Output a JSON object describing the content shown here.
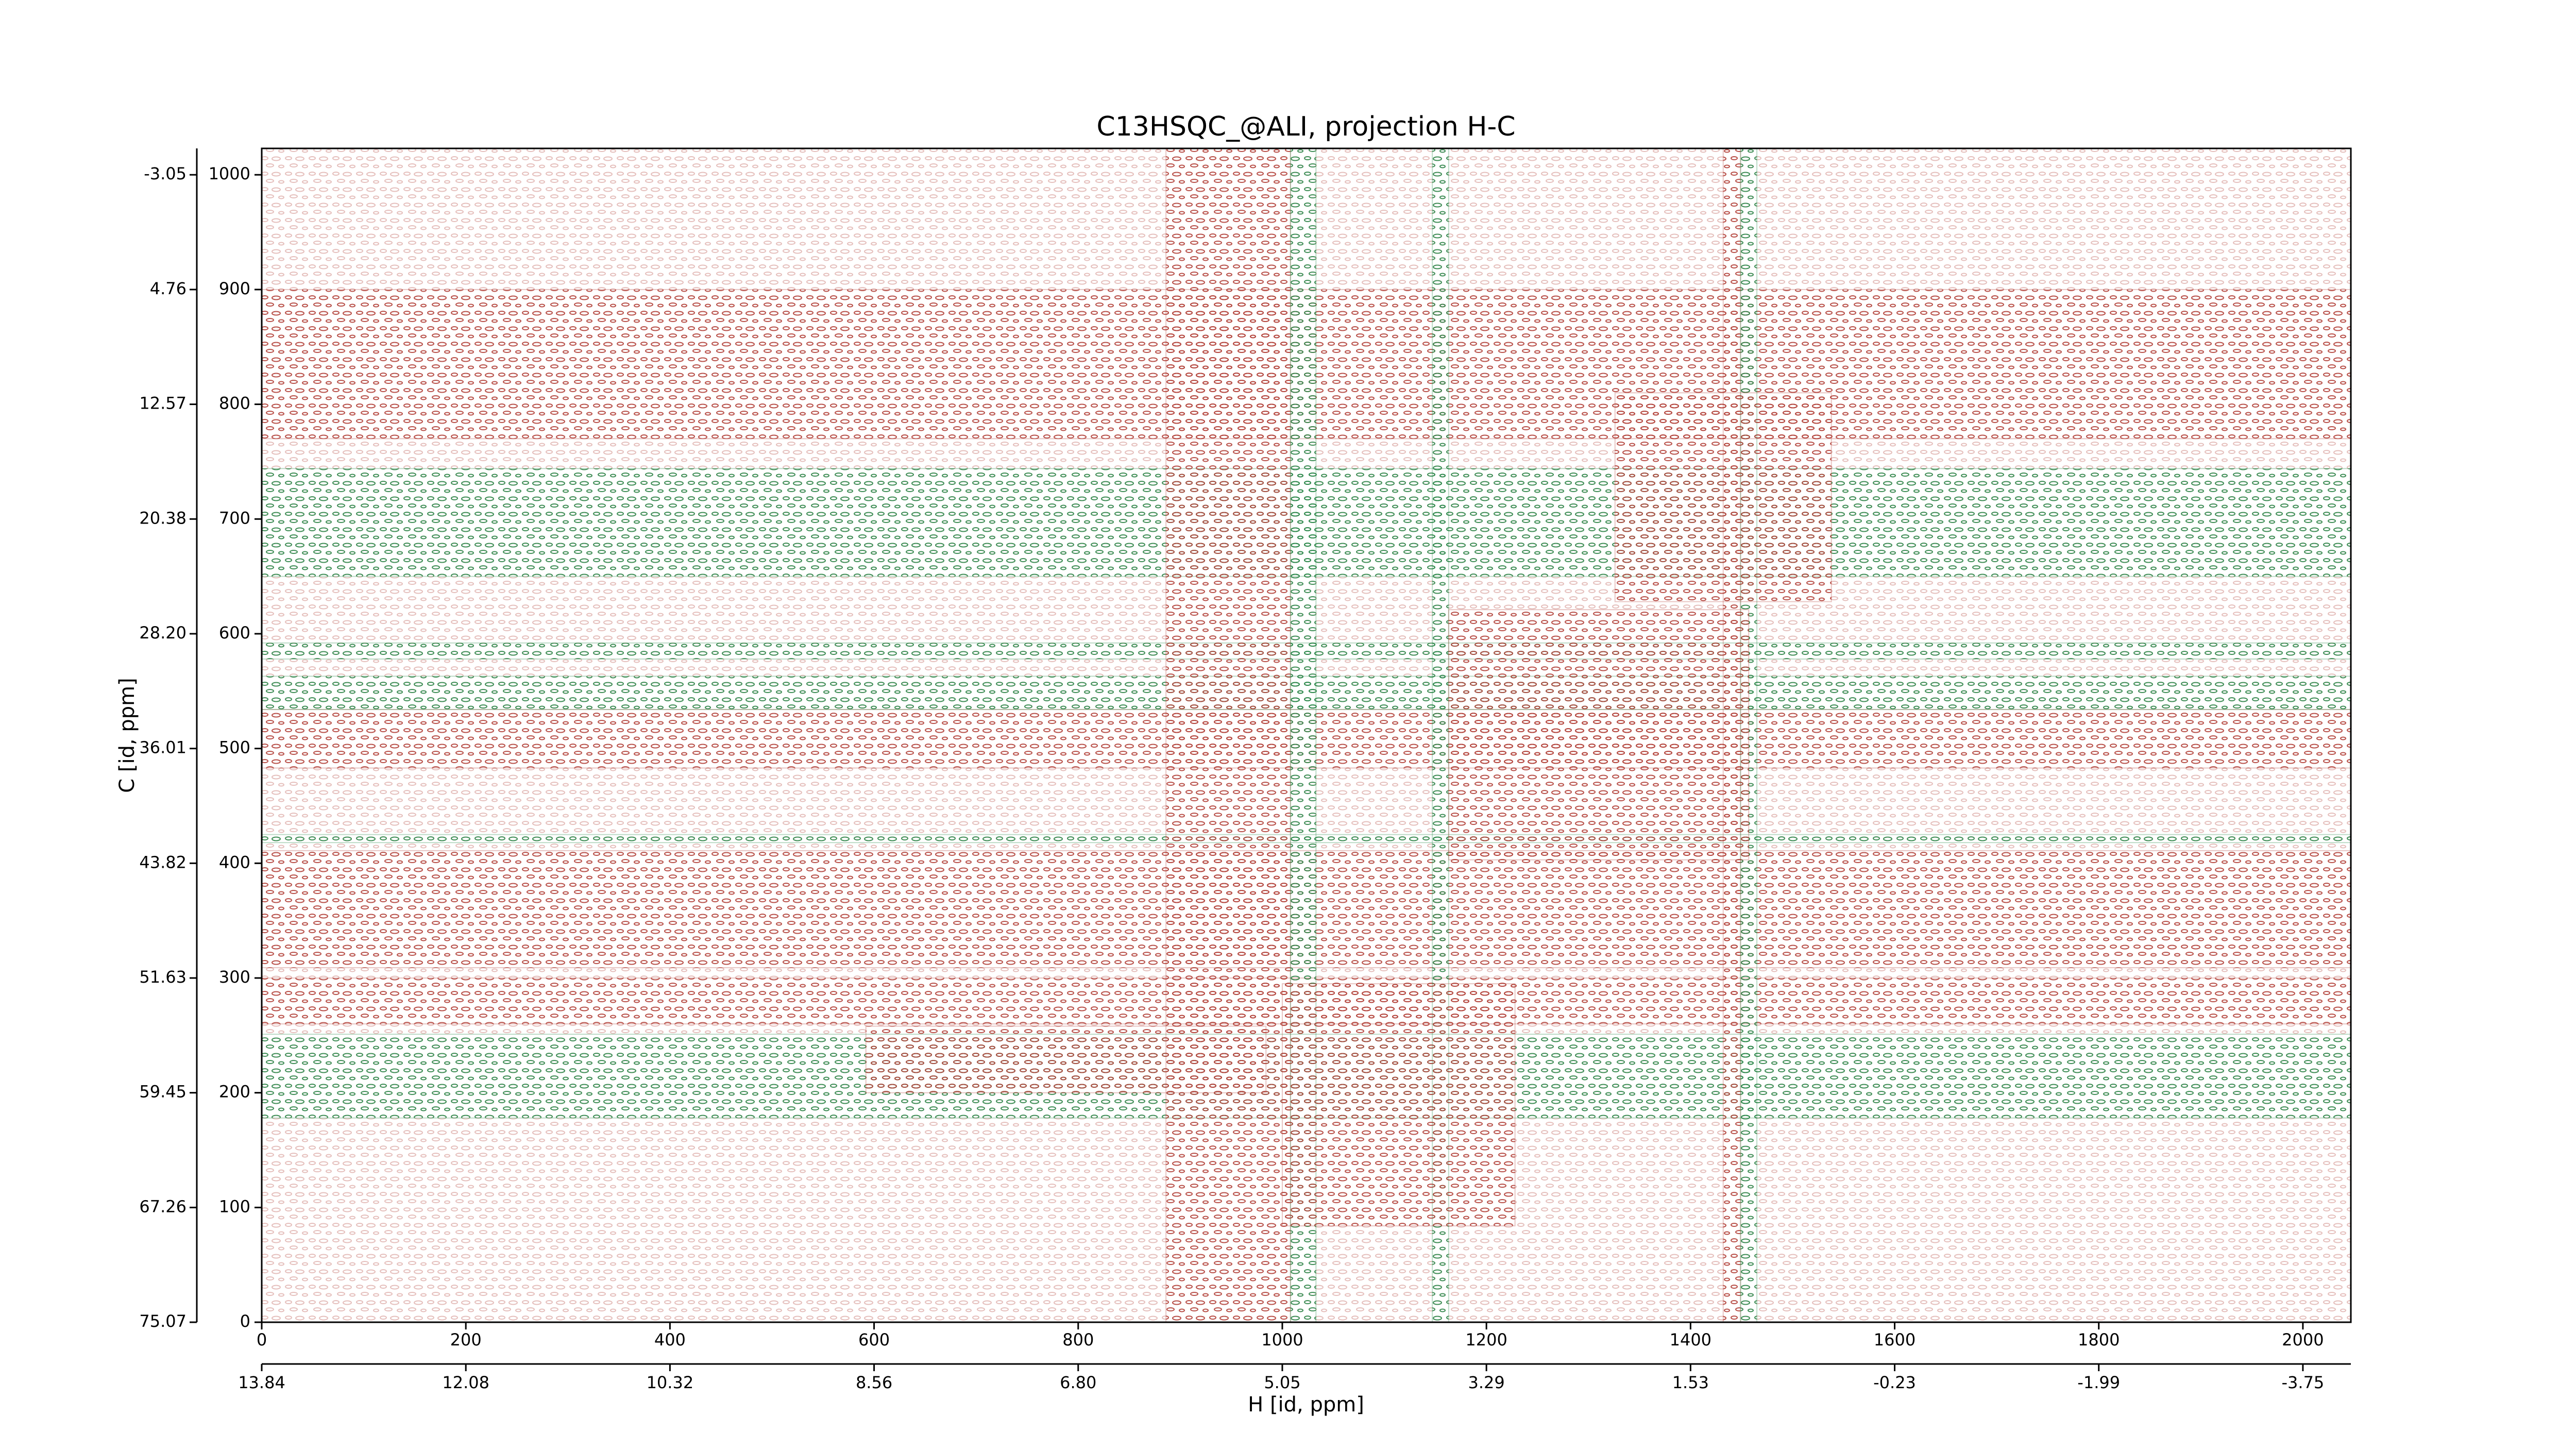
{
  "chart_data": {
    "type": "contour",
    "title": "C13HSQC_@ALI, projection H-C",
    "xlabel": "H [id, ppm]",
    "ylabel": "C [id, ppm]",
    "xlim": [
      0,
      2047
    ],
    "ylim": [
      0,
      1023
    ],
    "xticks": [
      0,
      200,
      400,
      600,
      800,
      1000,
      1200,
      1400,
      1600,
      1800,
      2000
    ],
    "yticks": [
      0,
      100,
      200,
      300,
      400,
      500,
      600,
      700,
      800,
      900,
      1000
    ],
    "xticks_ppm": [
      {
        "value": 0,
        "label": "13.84"
      },
      {
        "value": 200,
        "label": "12.08"
      },
      {
        "value": 400,
        "label": "10.32"
      },
      {
        "value": 600,
        "label": "8.56"
      },
      {
        "value": 800,
        "label": "6.80"
      },
      {
        "value": 1000,
        "label": "5.05"
      },
      {
        "value": 1200,
        "label": "3.29"
      },
      {
        "value": 1400,
        "label": "1.53"
      },
      {
        "value": 1600,
        "label": "-0.23"
      },
      {
        "value": 1800,
        "label": "-1.99"
      },
      {
        "value": 2000,
        "label": "-3.75"
      }
    ],
    "yticks_ppm": [
      {
        "value": 0,
        "label": "75.07"
      },
      {
        "value": 100,
        "label": "67.26"
      },
      {
        "value": 200,
        "label": "59.45"
      },
      {
        "value": 300,
        "label": "51.63"
      },
      {
        "value": 400,
        "label": "43.82"
      },
      {
        "value": 500,
        "label": "36.01"
      },
      {
        "value": 600,
        "label": "28.20"
      },
      {
        "value": 700,
        "label": "20.38"
      },
      {
        "value": 800,
        "label": "12.57"
      },
      {
        "value": 900,
        "label": "4.76"
      },
      {
        "value": 1000,
        "label": "-3.05"
      }
    ],
    "colors": {
      "positive": "#b5473f",
      "negative": "#2e8b4e"
    },
    "regions": [
      {
        "sign": "positive",
        "x": [
          0,
          2047
        ],
        "y": [
          0,
          1023
        ]
      },
      {
        "sign": "positive",
        "x": [
          0,
          2047
        ],
        "y": [
          770,
          900
        ]
      },
      {
        "sign": "positive",
        "x": [
          0,
          2047
        ],
        "y": [
          483,
          534
        ]
      },
      {
        "sign": "positive",
        "x": [
          0,
          2047
        ],
        "y": [
          309,
          411
        ]
      },
      {
        "sign": "positive",
        "x": [
          0,
          2047
        ],
        "y": [
          260,
          300
        ]
      },
      {
        "sign": "negative",
        "x": [
          0,
          2047
        ],
        "y": [
          650,
          744
        ]
      },
      {
        "sign": "negative",
        "x": [
          0,
          2047
        ],
        "y": [
          578,
          592
        ]
      },
      {
        "sign": "negative",
        "x": [
          0,
          2047
        ],
        "y": [
          534,
          563
        ]
      },
      {
        "sign": "negative",
        "x": [
          0,
          2047
        ],
        "y": [
          418,
          425
        ]
      },
      {
        "sign": "negative",
        "x": [
          0,
          2047
        ],
        "y": [
          178,
          251
        ]
      },
      {
        "sign": "positive",
        "x": [
          886,
          1008
        ],
        "y": [
          0,
          1023
        ]
      },
      {
        "sign": "negative",
        "x": [
          1008,
          1033
        ],
        "y": [
          0,
          1023
        ]
      },
      {
        "sign": "negative",
        "x": [
          1147,
          1163
        ],
        "y": [
          0,
          1023
        ]
      },
      {
        "sign": "positive",
        "x": [
          1432,
          1449
        ],
        "y": [
          0,
          1023
        ]
      },
      {
        "sign": "negative",
        "x": [
          1449,
          1465
        ],
        "y": [
          0,
          1023
        ]
      },
      {
        "sign": "positive",
        "x": [
          1163,
          1457
        ],
        "y": [
          403,
          621
        ]
      },
      {
        "sign": "positive",
        "x": [
          1000,
          1228
        ],
        "y": [
          84,
          295
        ]
      },
      {
        "sign": "positive",
        "x": [
          592,
          984
        ],
        "y": [
          200,
          258
        ]
      },
      {
        "sign": "positive",
        "x": [
          1326,
          1538
        ],
        "y": [
          628,
          810
        ]
      }
    ]
  }
}
